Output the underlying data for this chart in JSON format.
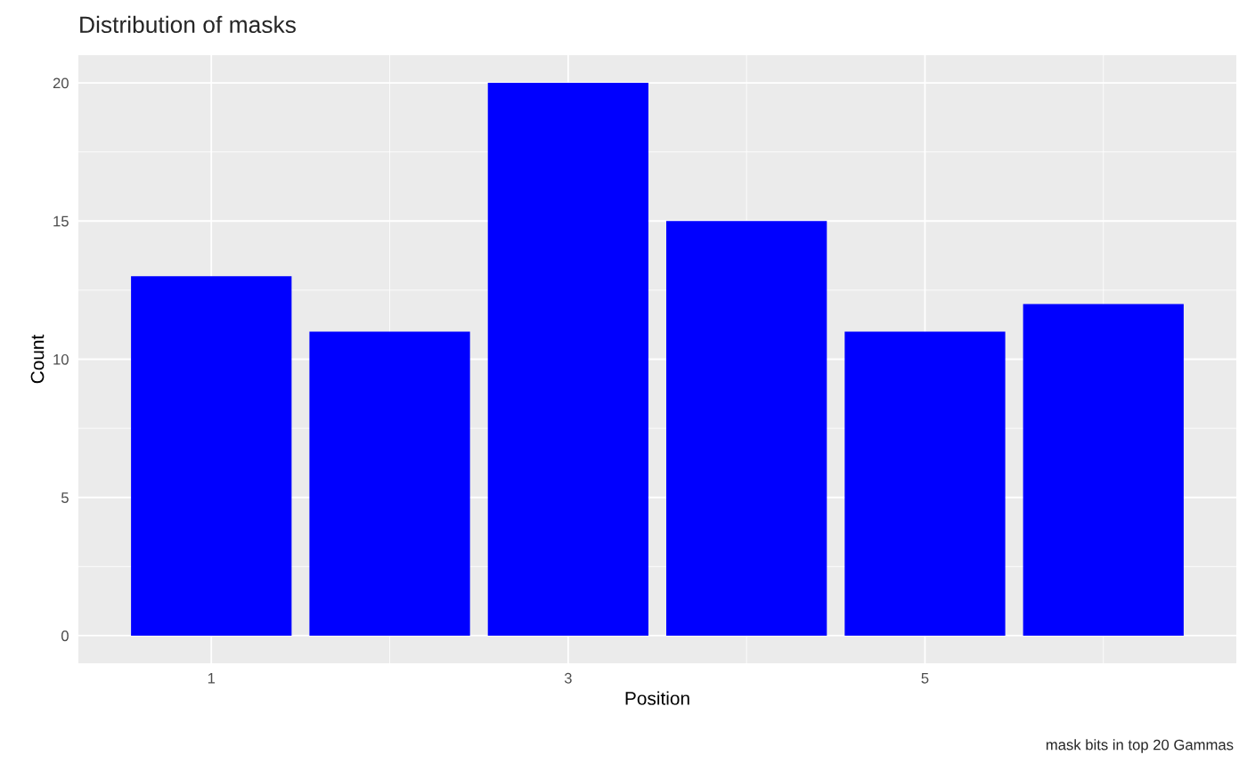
{
  "chart_data": {
    "type": "bar",
    "title": "Distribution of masks",
    "xlabel": "Position",
    "ylabel": "Count",
    "x": [
      1,
      2,
      3,
      4,
      5,
      6
    ],
    "values": [
      13,
      11,
      20,
      15,
      11,
      12
    ],
    "color": "#0000ff",
    "xlim": [
      0.255,
      6.745
    ],
    "xticks": [
      1,
      3,
      5
    ],
    "ylim": [
      -1,
      21
    ],
    "yticks": [
      0,
      5,
      10,
      15,
      20
    ],
    "grid": true,
    "annotations": [
      "mask bits in top 20 Gammas"
    ]
  }
}
